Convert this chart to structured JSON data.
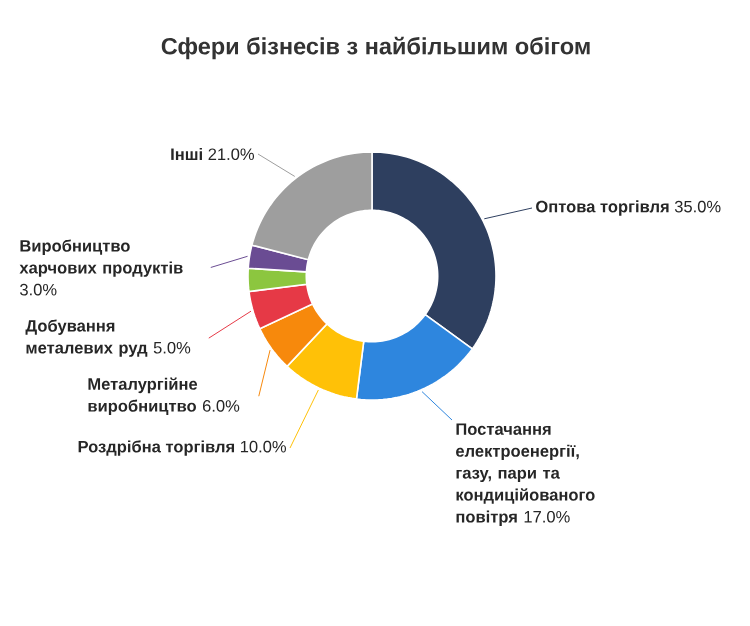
{
  "chart_data": {
    "type": "donut",
    "title": "Сфери бізнесів з найбільшим обігом",
    "categories": [
      "Оптова торгівля",
      "Постачання електроенергії, газу, пари та кондиційованого повітря",
      "Роздрібна торгівля",
      "Металургійне виробництво",
      "Добування металевих руд",
      null,
      "Виробництво харчових продуктів",
      "Інші"
    ],
    "values": [
      35,
      17,
      10,
      6,
      5,
      3,
      3,
      21
    ],
    "value_labels": [
      "35.0%",
      "17.0%",
      "10.0%",
      "6.0%",
      "5.0%",
      null,
      "3.0%",
      "21.0%"
    ],
    "colors": [
      "#2e3f5f",
      "#2e86de",
      "#ffc107",
      "#f7890c",
      "#e63946",
      "#8cc63f",
      "#6a4c93",
      "#9e9e9e"
    ]
  }
}
